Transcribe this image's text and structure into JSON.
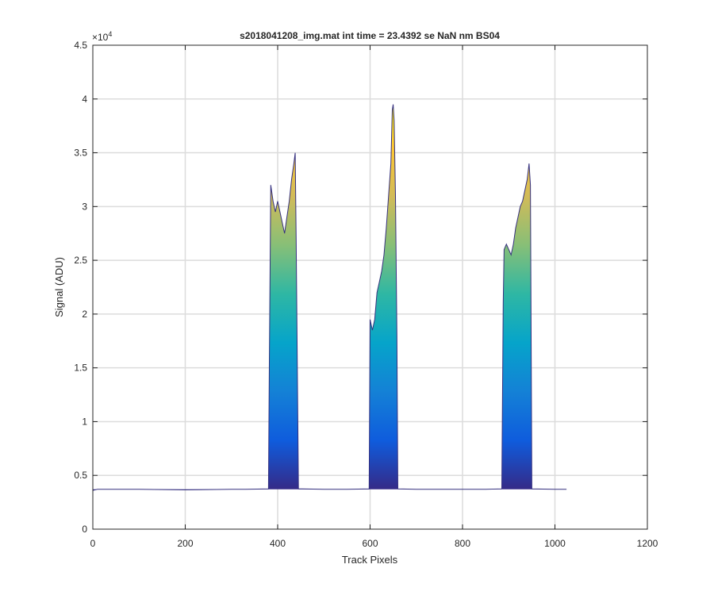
{
  "chart_data": {
    "type": "area",
    "title": "s2018041208_img.mat int time = 23.4392 se  NaN nm BS04",
    "xlabel": "Track Pixels",
    "ylabel": "Signal (ADU)",
    "xlim": [
      0,
      1200
    ],
    "ylim": [
      0,
      45000
    ],
    "x_ticks": [
      0,
      200,
      400,
      600,
      800,
      1000,
      1200
    ],
    "x_tick_labels": [
      "0",
      "200",
      "400",
      "600",
      "800",
      "1000",
      "1200"
    ],
    "y_ticks": [
      0,
      5000,
      10000,
      15000,
      20000,
      25000,
      30000,
      35000,
      40000,
      45000
    ],
    "y_tick_labels": [
      "0",
      "0.5",
      "1",
      "1.5",
      "2",
      "2.5",
      "3",
      "3.5",
      "4",
      "4.5"
    ],
    "y_exponent_base": "×10",
    "y_exponent_power": "4",
    "grid": true,
    "colormap": [
      "#352a87",
      "#0f5cdd",
      "#1481d6",
      "#06a4ca",
      "#2eb7a4",
      "#87bf77",
      "#d1bb59",
      "#fec832",
      "#f9fb0e"
    ],
    "baseline": 3700,
    "series": [
      {
        "x": [
          0,
          10,
          60,
          100,
          200,
          300,
          330,
          380,
          382,
          385,
          390,
          395,
          400,
          405,
          410,
          415,
          420,
          425,
          430,
          435,
          438,
          440,
          445,
          500,
          550,
          598,
          600,
          605,
          610,
          615,
          620,
          625,
          630,
          635,
          640,
          645,
          648,
          650,
          652,
          655,
          658,
          660,
          700,
          800,
          850,
          885,
          888,
          890,
          895,
          900,
          905,
          910,
          915,
          920,
          925,
          930,
          935,
          940,
          944,
          947,
          950,
          1000,
          1025
        ],
        "y": [
          3600,
          3700,
          3700,
          3700,
          3650,
          3700,
          3700,
          3750,
          15500,
          32000,
          30500,
          29500,
          30500,
          29500,
          28500,
          27500,
          29000,
          30500,
          32500,
          34000,
          35000,
          27000,
          3750,
          3700,
          3700,
          3750,
          19500,
          18500,
          19500,
          22000,
          23000,
          24000,
          25500,
          28000,
          31000,
          34000,
          39000,
          39500,
          38000,
          31000,
          18000,
          3750,
          3700,
          3700,
          3700,
          3750,
          21000,
          26000,
          26500,
          26000,
          25500,
          26500,
          28000,
          29000,
          30000,
          30500,
          31500,
          32500,
          34000,
          32000,
          3750,
          3700,
          3700
        ]
      }
    ]
  }
}
